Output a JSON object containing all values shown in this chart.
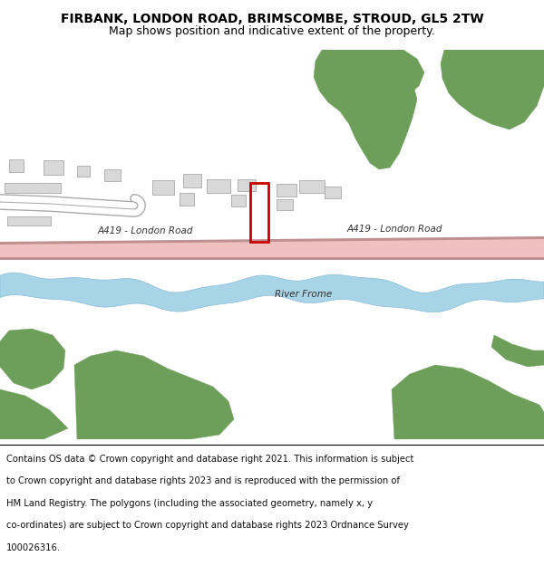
{
  "title_line1": "FIRBANK, LONDON ROAD, BRIMSCOMBE, STROUD, GL5 2TW",
  "title_line2": "Map shows position and indicative extent of the property.",
  "background_color": "#ffffff",
  "map_bg_color": "#f0f0f0",
  "green_color": "#6d9e5a",
  "road_color": "#f0c0c0",
  "road_border_color": "#c09090",
  "river_color": "#a8d4e8",
  "building_color": "#d8d8d8",
  "building_border": "#aaaaaa",
  "plot_outline_color": "#cc0000",
  "road_label": "A419 - London Road",
  "road_label2": "A419 - London Road",
  "river_label": "River Frome",
  "footer_lines": [
    "Contains OS data © Crown copyright and database right 2021. This information is subject",
    "to Crown copyright and database rights 2023 and is reproduced with the permission of",
    "HM Land Registry. The polygons (including the associated geometry, namely x, y",
    "co-ordinates) are subject to Crown copyright and database rights 2023 Ordnance Survey",
    "100026316."
  ]
}
